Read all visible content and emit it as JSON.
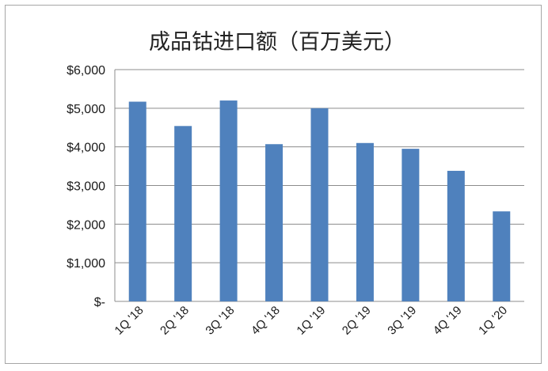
{
  "chart_data": {
    "type": "bar",
    "title": "成品钴进口额（百万美元）",
    "categories": [
      "1Q '18",
      "2Q '18",
      "3Q '18",
      "4Q '18",
      "1Q '19",
      "2Q '19",
      "3Q '19",
      "4Q '19",
      "1Q '20"
    ],
    "values": [
      5170,
      4540,
      5200,
      4070,
      5000,
      4100,
      3950,
      3380,
      2330
    ],
    "y_tick_labels": [
      "$-",
      "$1,000",
      "$2,000",
      "$3,000",
      "$4,000",
      "$5,000",
      "$6,000"
    ],
    "ylim": [
      0,
      6000
    ],
    "grid": true,
    "legend": "none",
    "bar_color": "#4f81bd",
    "grid_color": "#8c8c8c"
  }
}
